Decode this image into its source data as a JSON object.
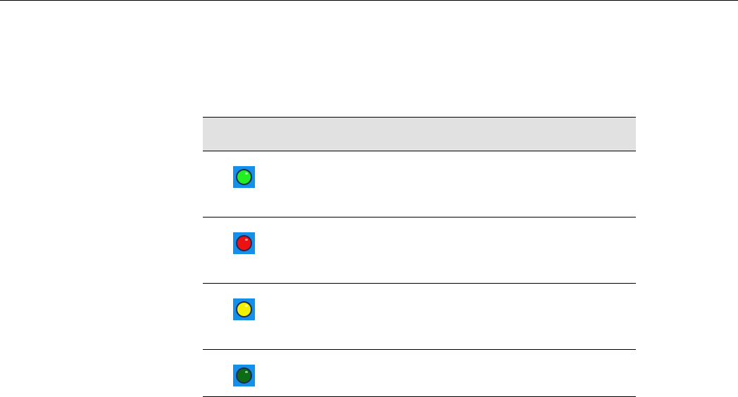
{
  "table": {
    "header": [],
    "rows": [
      {
        "icon": "status-green-light-icon",
        "color": "#22ee22"
      },
      {
        "icon": "status-red-light-icon",
        "color": "#ee1111"
      },
      {
        "icon": "status-yellow-light-icon",
        "color": "#f2f200"
      },
      {
        "icon": "status-dark-green-light-icon",
        "color": "#0d6b14"
      }
    ],
    "icon_background": "#1590e8",
    "header_background": "#e1e1e1"
  }
}
